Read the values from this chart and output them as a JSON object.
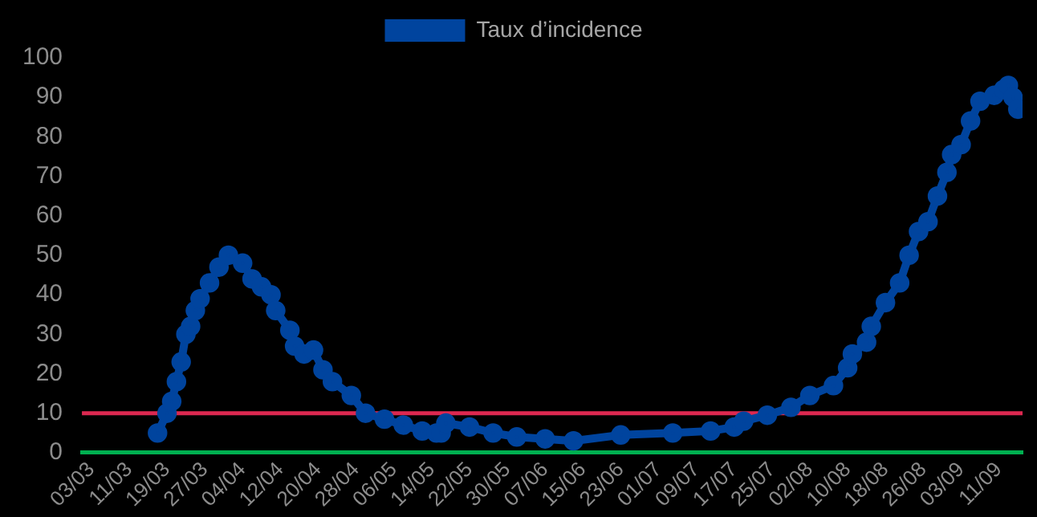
{
  "chart_data": {
    "type": "line",
    "legend": "top",
    "marker": "circle",
    "line_style": "solid",
    "grid": false,
    "x": [
      "--03-17",
      "--03-19",
      "--03-20",
      "--03-21",
      "--03-22",
      "--03-23",
      "--03-24",
      "--03-25",
      "--03-26",
      "--03-28",
      "--03-30",
      "--04-01",
      "--04-04",
      "--04-06",
      "--04-08",
      "--04-10",
      "--04-11",
      "--04-14",
      "--04-15",
      "--04-17",
      "--04-19",
      "--04-21",
      "--04-23",
      "--04-27",
      "--04-30",
      "--05-04",
      "--05-08",
      "--05-12",
      "--05-15",
      "--05-16",
      "--05-17",
      "--05-22",
      "--05-27",
      "--06-01",
      "--06-07",
      "--06-13",
      "--06-23",
      "--07-04",
      "--07-12",
      "--07-17",
      "--07-19",
      "--07-24",
      "--07-29",
      "--08-02",
      "--08-07",
      "--08-10",
      "--08-11",
      "--08-14",
      "--08-15",
      "--08-18",
      "--08-21",
      "--08-23",
      "--08-25",
      "--08-27",
      "--08-29",
      "--08-31",
      "--09-01",
      "--09-03",
      "--09-05",
      "--09-07",
      "--09-10",
      "--09-12",
      "--09-13",
      "--09-14",
      "--09-15"
    ],
    "series": [
      {
        "name": "Taux d’incidence",
        "color": "#00449e",
        "values": [
          5,
          10,
          13,
          18,
          23,
          30,
          32,
          36,
          39,
          43,
          47,
          50,
          48,
          44,
          42,
          40,
          36,
          31,
          27,
          25,
          26,
          21,
          18,
          14.5,
          10,
          8.5,
          7,
          5.5,
          5,
          5,
          7.5,
          6.5,
          5,
          4,
          3.5,
          3,
          4.5,
          5,
          5.5,
          6.5,
          8,
          9.5,
          11.5,
          14.5,
          17,
          21.5,
          25,
          28,
          32,
          38,
          43,
          50,
          56,
          58.5,
          65,
          71,
          75.5,
          78,
          84,
          89,
          90.5,
          92,
          93,
          90,
          87
        ]
      }
    ],
    "xlim": [
      "--03-01",
      "--09-16"
    ],
    "xticks": [
      {
        "value": "--03-03",
        "label": "03/03"
      },
      {
        "value": "--03-11",
        "label": "11/03"
      },
      {
        "value": "--03-19",
        "label": "19/03"
      },
      {
        "value": "--03-27",
        "label": "27/03"
      },
      {
        "value": "--04-04",
        "label": "04/04"
      },
      {
        "value": "--04-12",
        "label": "12/04"
      },
      {
        "value": "--04-20",
        "label": "20/04"
      },
      {
        "value": "--04-28",
        "label": "28/04"
      },
      {
        "value": "--05-06",
        "label": "06/05"
      },
      {
        "value": "--05-14",
        "label": "14/05"
      },
      {
        "value": "--05-22",
        "label": "22/05"
      },
      {
        "value": "--05-30",
        "label": "30/05"
      },
      {
        "value": "--06-07",
        "label": "07/06"
      },
      {
        "value": "--06-15",
        "label": "15/06"
      },
      {
        "value": "--06-23",
        "label": "23/06"
      },
      {
        "value": "--07-01",
        "label": "01/07"
      },
      {
        "value": "--07-09",
        "label": "09/07"
      },
      {
        "value": "--07-17",
        "label": "17/07"
      },
      {
        "value": "--07-25",
        "label": "25/07"
      },
      {
        "value": "--08-02",
        "label": "02/08"
      },
      {
        "value": "--08-10",
        "label": "10/08"
      },
      {
        "value": "--08-18",
        "label": "18/08"
      },
      {
        "value": "--08-26",
        "label": "26/08"
      },
      {
        "value": "--09-03",
        "label": "03/09"
      },
      {
        "value": "--09-11",
        "label": "11/09"
      }
    ],
    "ylim": [
      0,
      100
    ],
    "yticks": [
      0,
      10,
      20,
      30,
      40,
      50,
      60,
      70,
      80,
      90,
      100
    ],
    "ref_lines": [
      {
        "axis": "y",
        "value": 10,
        "color": "#dc2850"
      }
    ]
  }
}
